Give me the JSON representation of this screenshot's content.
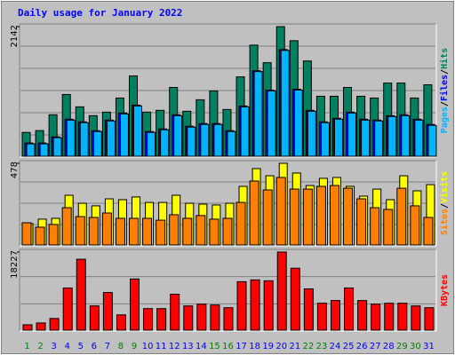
{
  "chart_data": [
    {
      "type": "bar",
      "title": "Daily usage for January 2022",
      "legend_separator": "/",
      "ylim": [
        0,
        2142
      ],
      "yticks": [
        2142
      ],
      "series": [
        {
          "name": "Hits",
          "color": "#008060",
          "values": [
            393,
            423,
            685,
            1020,
            816,
            670,
            729,
            962,
            1326,
            729,
            758,
            1137,
            743,
            933,
            1078,
            772,
            1311,
            1836,
            1545,
            2142,
            1909,
            1574,
            991,
            991,
            1137,
            991,
            962,
            1209,
            1209,
            962,
            1180
          ]
        },
        {
          "name": "Files",
          "color": "#0000ff",
          "values": [
            218,
            218,
            320,
            612,
            568,
            422,
            597,
            714,
            845,
            408,
            451,
            685,
            495,
            540,
            540,
            422,
            831,
            1413,
            1093,
            1763,
            1107,
            758,
            568,
            627,
            729,
            612,
            597,
            670,
            685,
            612,
            525
          ]
        },
        {
          "name": "Pages",
          "color": "#00b4ff",
          "values": [
            204,
            204,
            306,
            597,
            554,
            408,
            583,
            699,
            831,
            393,
            437,
            670,
            481,
            525,
            525,
            408,
            816,
            1399,
            1078,
            1749,
            1093,
            743,
            554,
            612,
            714,
            597,
            583,
            656,
            670,
            597,
            510
          ]
        }
      ]
    },
    {
      "type": "bar",
      "legend_separator": "/",
      "ylim": [
        0,
        478
      ],
      "yticks": [
        478
      ],
      "series": [
        {
          "name": "Visits",
          "color": "#ffff00",
          "values": [
            125,
            151,
            156,
            291,
            244,
            229,
            270,
            265,
            281,
            249,
            249,
            291,
            244,
            239,
            234,
            244,
            343,
            447,
            405,
            478,
            421,
            348,
            390,
            395,
            343,
            286,
            327,
            265,
            405,
            317,
            353
          ]
        },
        {
          "name": "Sites",
          "color": "#ff8000",
          "values": [
            130,
            104,
            120,
            218,
            166,
            161,
            187,
            156,
            156,
            156,
            145,
            177,
            156,
            172,
            151,
            156,
            249,
            374,
            322,
            395,
            327,
            327,
            343,
            348,
            332,
            270,
            218,
            208,
            332,
            229,
            161
          ]
        }
      ]
    },
    {
      "type": "bar",
      "ylim": [
        0,
        18227
      ],
      "yticks": [
        18227
      ],
      "series": [
        {
          "name": "KBytes",
          "color": "#ff0000",
          "values": [
            1257,
            1676,
            2723,
            9847,
            16551,
            5656,
            8799,
            3561,
            11941,
            5028,
            5028,
            8380,
            5656,
            6075,
            5866,
            5237,
            11313,
            11732,
            11522,
            18227,
            14456,
            9637,
            6285,
            6913,
            9847,
            6913,
            6075,
            6285,
            6285,
            5656,
            5237
          ]
        }
      ],
      "categories": [
        "1",
        "2",
        "3",
        "4",
        "5",
        "6",
        "7",
        "8",
        "9",
        "10",
        "11",
        "12",
        "13",
        "14",
        "15",
        "16",
        "17",
        "18",
        "19",
        "20",
        "21",
        "22",
        "23",
        "24",
        "25",
        "26",
        "27",
        "28",
        "29",
        "30",
        "31"
      ],
      "category_colors": [
        "#008000",
        "#008000",
        "#0000ff",
        "#0000ff",
        "#0000ff",
        "#0000ff",
        "#0000ff",
        "#008000",
        "#008000",
        "#0000ff",
        "#0000ff",
        "#0000ff",
        "#0000ff",
        "#0000ff",
        "#008000",
        "#008000",
        "#0000ff",
        "#0000ff",
        "#0000ff",
        "#0000ff",
        "#0000ff",
        "#008000",
        "#008000",
        "#0000ff",
        "#0000ff",
        "#0000ff",
        "#0000ff",
        "#0000ff",
        "#008000",
        "#008000",
        "#0000ff"
      ]
    }
  ]
}
